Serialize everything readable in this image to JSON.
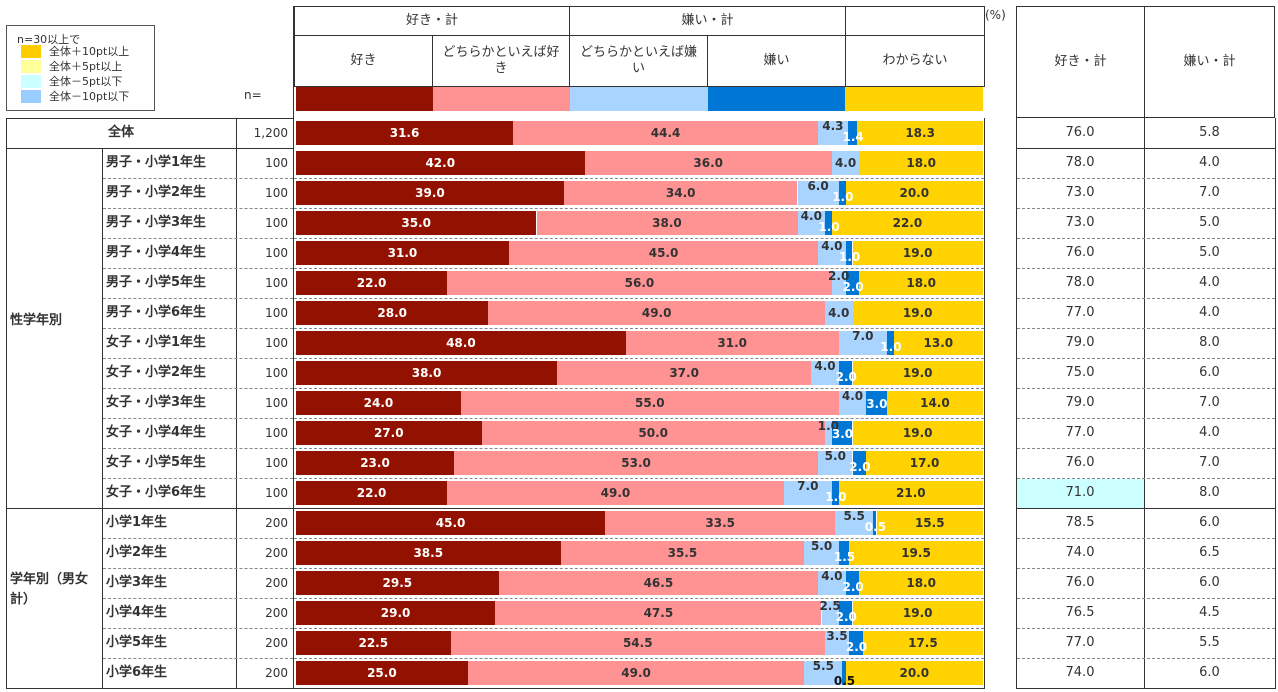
{
  "legend": {
    "title": "n=30以上で",
    "items": [
      {
        "label": "全体＋10pt以上",
        "color": "#ffcc00"
      },
      {
        "label": "全体＋5pt以上",
        "color": "#ffff99"
      },
      {
        "label": "全体－5pt以下",
        "color": "#ccffff"
      },
      {
        "label": "全体－10pt以下",
        "color": "#99ccff"
      }
    ]
  },
  "header": {
    "group_like": "好き・計",
    "group_dislike": "嫌い・計",
    "n_label": "n=",
    "unit": "(%)",
    "columns": [
      "好き",
      "どちらかといえば好き",
      "どちらかといえば嫌い",
      "嫌い",
      "わからない"
    ],
    "right_columns": [
      "好き・計",
      "嫌い・計"
    ]
  },
  "colors": {
    "like": "#931100",
    "somewhat_like": "#ff9393",
    "somewhat_dislike": "#a8d4ff",
    "dislike": "#0077d4",
    "dont_know": "#ffd200",
    "highlight_minus5": "#ccffff"
  },
  "groups": [
    {
      "label": "性学年別",
      "rows": [
        1,
        12
      ]
    },
    {
      "label": "学年別（男女計）",
      "rows": [
        13,
        18
      ]
    }
  ],
  "chart_data": {
    "type": "bar",
    "orientation": "horizontal-stacked-100",
    "title": "",
    "xlabel": "",
    "ylabel": "",
    "xlim": [
      0,
      100
    ],
    "unit": "%",
    "series_names": [
      "好き",
      "どちらかといえば好き",
      "どちらかといえば嫌い",
      "嫌い",
      "わからない"
    ],
    "rows": [
      {
        "label": "全体",
        "n": "1,200",
        "values": [
          31.6,
          44.4,
          4.3,
          1.4,
          18.3
        ],
        "labels": [
          "31.6",
          "44.4",
          "4.3",
          "1.4",
          "18.3"
        ],
        "like_total": "76.0",
        "dislike_total": "5.8"
      },
      {
        "label": "男子・小学1年生",
        "n": "100",
        "values": [
          42.0,
          36.0,
          4.0,
          0,
          18.0
        ],
        "labels": [
          "42.0",
          "36.0",
          "4.0",
          "",
          "18.0"
        ],
        "like_total": "78.0",
        "dislike_total": "4.0"
      },
      {
        "label": "男子・小学2年生",
        "n": "100",
        "values": [
          39.0,
          34.0,
          6.0,
          1.0,
          20.0
        ],
        "labels": [
          "39.0",
          "34.0",
          "6.0",
          "1.0",
          "20.0"
        ],
        "like_total": "73.0",
        "dislike_total": "7.0"
      },
      {
        "label": "男子・小学3年生",
        "n": "100",
        "values": [
          35.0,
          38.0,
          4.0,
          1.0,
          22.0
        ],
        "labels": [
          "35.0",
          "38.0",
          "4.0",
          "1.0",
          "22.0"
        ],
        "like_total": "73.0",
        "dislike_total": "5.0"
      },
      {
        "label": "男子・小学4年生",
        "n": "100",
        "values": [
          31.0,
          45.0,
          4.0,
          1.0,
          19.0
        ],
        "labels": [
          "31.0",
          "45.0",
          "4.0",
          "1.0",
          "19.0"
        ],
        "like_total": "76.0",
        "dislike_total": "5.0"
      },
      {
        "label": "男子・小学5年生",
        "n": "100",
        "values": [
          22.0,
          56.0,
          2.0,
          2.0,
          18.0
        ],
        "labels": [
          "22.0",
          "56.0",
          "2.0",
          "2.0",
          "18.0"
        ],
        "like_total": "78.0",
        "dislike_total": "4.0"
      },
      {
        "label": "男子・小学6年生",
        "n": "100",
        "values": [
          28.0,
          49.0,
          4.0,
          0,
          19.0
        ],
        "labels": [
          "28.0",
          "49.0",
          "4.0",
          "",
          "19.0"
        ],
        "like_total": "77.0",
        "dislike_total": "4.0"
      },
      {
        "label": "女子・小学1年生",
        "n": "100",
        "values": [
          48.0,
          31.0,
          7.0,
          1.0,
          13.0
        ],
        "labels": [
          "48.0",
          "31.0",
          "7.0",
          "1.0",
          "13.0"
        ],
        "like_total": "79.0",
        "dislike_total": "8.0"
      },
      {
        "label": "女子・小学2年生",
        "n": "100",
        "values": [
          38.0,
          37.0,
          4.0,
          2.0,
          19.0
        ],
        "labels": [
          "38.0",
          "37.0",
          "4.0",
          "2.0",
          "19.0"
        ],
        "like_total": "75.0",
        "dislike_total": "6.0"
      },
      {
        "label": "女子・小学3年生",
        "n": "100",
        "values": [
          24.0,
          55.0,
          4.0,
          3.0,
          14.0
        ],
        "labels": [
          "24.0",
          "55.0",
          "4.0",
          "3.0",
          "14.0"
        ],
        "like_total": "79.0",
        "dislike_total": "7.0"
      },
      {
        "label": "女子・小学4年生",
        "n": "100",
        "values": [
          27.0,
          50.0,
          1.0,
          3.0,
          19.0
        ],
        "labels": [
          "27.0",
          "50.0",
          "1.0",
          "3.0",
          "19.0"
        ],
        "like_total": "77.0",
        "dislike_total": "4.0"
      },
      {
        "label": "女子・小学5年生",
        "n": "100",
        "values": [
          23.0,
          53.0,
          5.0,
          2.0,
          17.0
        ],
        "labels": [
          "23.0",
          "53.0",
          "5.0",
          "2.0",
          "17.0"
        ],
        "like_total": "76.0",
        "dislike_total": "7.0"
      },
      {
        "label": "女子・小学6年生",
        "n": "100",
        "values": [
          22.0,
          49.0,
          7.0,
          1.0,
          21.0
        ],
        "labels": [
          "22.0",
          "49.0",
          "7.0",
          "1.0",
          "21.0"
        ],
        "like_total": "71.0",
        "dislike_total": "8.0",
        "like_total_highlight": "minus5"
      },
      {
        "label": "小学1年生",
        "n": "200",
        "values": [
          45.0,
          33.5,
          5.5,
          0.5,
          15.5
        ],
        "labels": [
          "45.0",
          "33.5",
          "5.5",
          "0.5",
          "15.5"
        ],
        "like_total": "78.5",
        "dislike_total": "6.0"
      },
      {
        "label": "小学2年生",
        "n": "200",
        "values": [
          38.5,
          35.5,
          5.0,
          1.5,
          19.5
        ],
        "labels": [
          "38.5",
          "35.5",
          "5.0",
          "1.5",
          "19.5"
        ],
        "like_total": "74.0",
        "dislike_total": "6.5"
      },
      {
        "label": "小学3年生",
        "n": "200",
        "values": [
          29.5,
          46.5,
          4.0,
          2.0,
          18.0
        ],
        "labels": [
          "29.5",
          "46.5",
          "4.0",
          "2.0",
          "18.0"
        ],
        "like_total": "76.0",
        "dislike_total": "6.0"
      },
      {
        "label": "小学4年生",
        "n": "200",
        "values": [
          29.0,
          47.5,
          2.5,
          2.0,
          19.0
        ],
        "labels": [
          "29.0",
          "47.5",
          "2.5",
          "2.0",
          "19.0"
        ],
        "like_total": "76.5",
        "dislike_total": "4.5"
      },
      {
        "label": "小学5年生",
        "n": "200",
        "values": [
          22.5,
          54.5,
          3.5,
          2.0,
          17.5
        ],
        "labels": [
          "22.5",
          "54.5",
          "3.5",
          "2.0",
          "17.5"
        ],
        "like_total": "77.0",
        "dislike_total": "5.5"
      },
      {
        "label": "小学6年生",
        "n": "200",
        "values": [
          25.0,
          49.0,
          5.5,
          0.5,
          20.0
        ],
        "labels": [
          "25.0",
          "49.0",
          "5.5",
          "0.5",
          "20.0"
        ],
        "like_total": "74.0",
        "dislike_total": "6.0"
      }
    ]
  }
}
